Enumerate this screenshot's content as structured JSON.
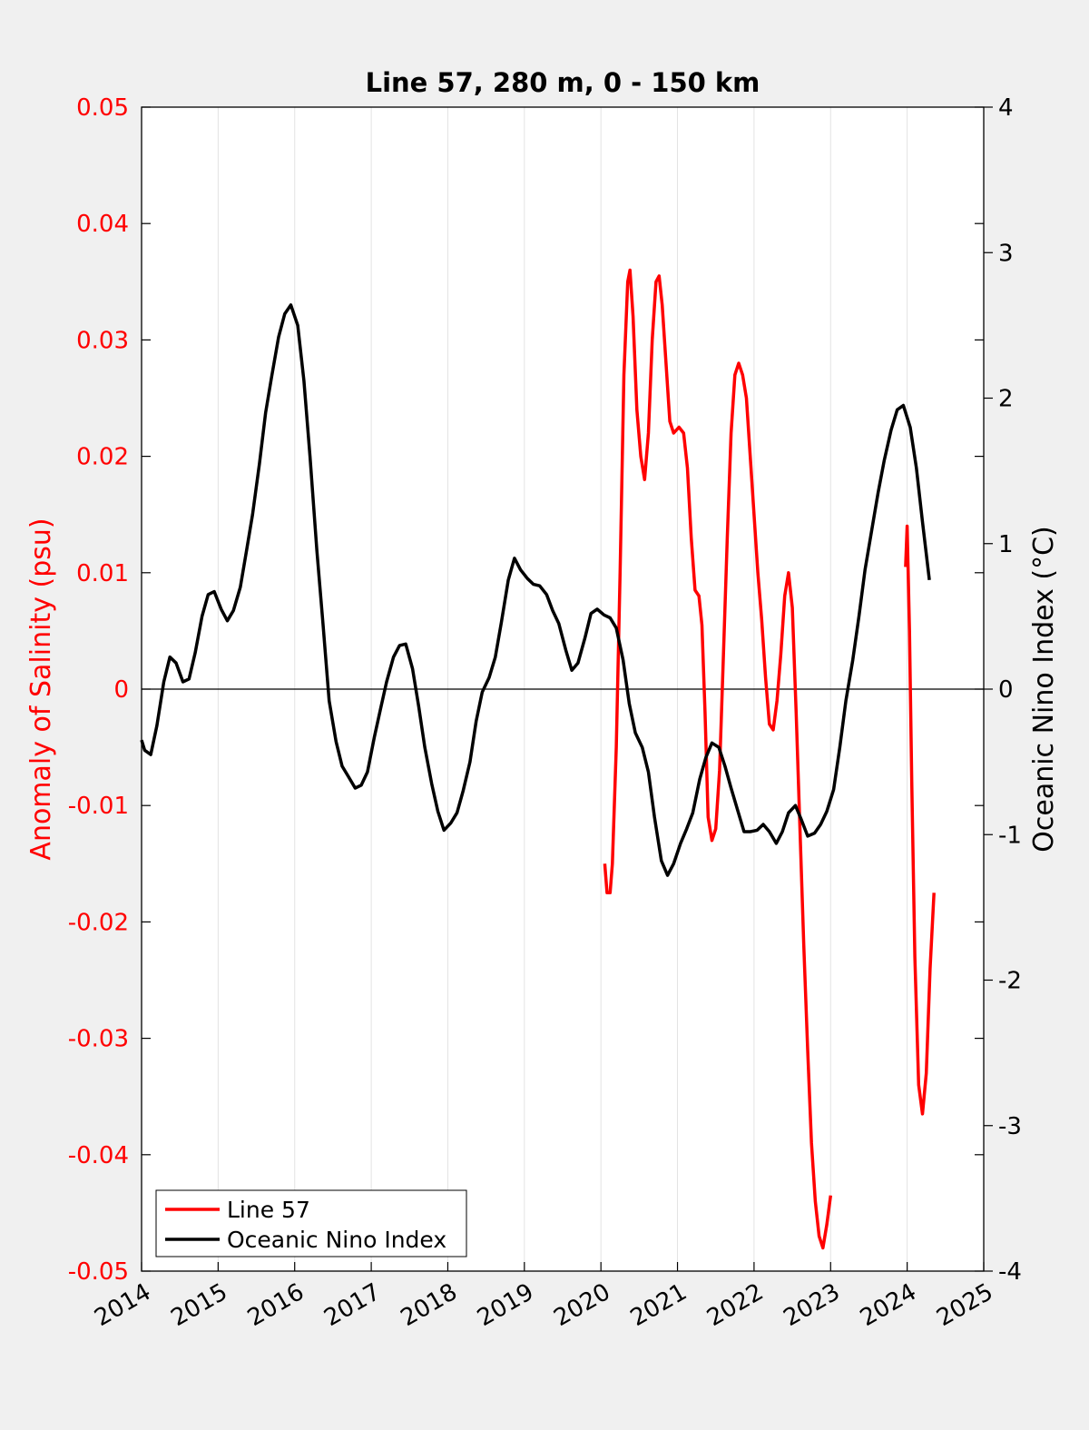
{
  "chart_data": {
    "type": "line",
    "title": "Line 57, 280 m, 0 - 150 km",
    "ylabel_left": "Anomaly of Salinity (psu)",
    "ylabel_right": "Oceanic Nino Index (°C)",
    "xlim": [
      2014,
      2025
    ],
    "ylim_left": [
      -0.05,
      0.05
    ],
    "ylim_right": [
      -4,
      4
    ],
    "grid": "vertical",
    "legend_position": "bottom-left",
    "x_ticks": [
      "2014",
      "2015",
      "2016",
      "2017",
      "2018",
      "2019",
      "2020",
      "2021",
      "2022",
      "2023",
      "2024",
      "2025"
    ],
    "y_left_ticks": [
      "-0.05",
      "-0.04",
      "-0.03",
      "-0.02",
      "-0.01",
      "0",
      "0.01",
      "0.02",
      "0.03",
      "0.04",
      "0.05"
    ],
    "y_right_ticks": [
      "-4",
      "-3",
      "-2",
      "-1",
      "0",
      "1",
      "2",
      "3",
      "4"
    ],
    "colors": {
      "salinity": "#ff0000",
      "oni": "#000000",
      "left_axis": "#ff0000",
      "right_axis": "#000000"
    },
    "series": [
      {
        "name": "Line 57",
        "axis": "left",
        "segments": [
          [
            [
              2020.05,
              -0.015
            ],
            [
              2020.08,
              -0.0175
            ],
            [
              2020.12,
              -0.0175
            ],
            [
              2020.15,
              -0.015
            ],
            [
              2020.2,
              -0.005
            ],
            [
              2020.25,
              0.01
            ],
            [
              2020.3,
              0.027
            ],
            [
              2020.35,
              0.035
            ],
            [
              2020.38,
              0.036
            ],
            [
              2020.42,
              0.032
            ],
            [
              2020.47,
              0.024
            ],
            [
              2020.52,
              0.02
            ],
            [
              2020.57,
              0.018
            ],
            [
              2020.62,
              0.022
            ],
            [
              2020.67,
              0.03
            ],
            [
              2020.72,
              0.035
            ],
            [
              2020.76,
              0.0355
            ],
            [
              2020.8,
              0.033
            ],
            [
              2020.85,
              0.028
            ],
            [
              2020.9,
              0.023
            ],
            [
              2020.95,
              0.022
            ],
            [
              2021.02,
              0.0225
            ],
            [
              2021.08,
              0.022
            ],
            [
              2021.13,
              0.019
            ],
            [
              2021.18,
              0.013
            ],
            [
              2021.23,
              0.0085
            ],
            [
              2021.28,
              0.008
            ],
            [
              2021.32,
              0.0055
            ],
            [
              2021.36,
              -0.002
            ],
            [
              2021.4,
              -0.011
            ],
            [
              2021.45,
              -0.013
            ],
            [
              2021.5,
              -0.012
            ],
            [
              2021.55,
              -0.007
            ],
            [
              2021.6,
              0.003
            ],
            [
              2021.65,
              0.013
            ],
            [
              2021.7,
              0.022
            ],
            [
              2021.75,
              0.027
            ],
            [
              2021.8,
              0.028
            ],
            [
              2021.85,
              0.027
            ],
            [
              2021.9,
              0.025
            ],
            [
              2021.95,
              0.02
            ],
            [
              2022.0,
              0.015
            ],
            [
              2022.05,
              0.01
            ],
            [
              2022.1,
              0.006
            ],
            [
              2022.15,
              0.001
            ],
            [
              2022.2,
              -0.003
            ],
            [
              2022.25,
              -0.0035
            ],
            [
              2022.3,
              -0.001
            ],
            [
              2022.35,
              0.003
            ],
            [
              2022.4,
              0.008
            ],
            [
              2022.45,
              0.01
            ],
            [
              2022.5,
              0.007
            ],
            [
              2022.55,
              -0.002
            ],
            [
              2022.6,
              -0.012
            ],
            [
              2022.65,
              -0.022
            ],
            [
              2022.7,
              -0.031
            ],
            [
              2022.75,
              -0.039
            ],
            [
              2022.8,
              -0.044
            ],
            [
              2022.85,
              -0.047
            ],
            [
              2022.9,
              -0.048
            ],
            [
              2022.95,
              -0.046
            ],
            [
              2023.0,
              -0.0435
            ]
          ],
          [
            [
              2023.98,
              0.0105
            ],
            [
              2024.0,
              0.014
            ],
            [
              2024.03,
              0.005
            ],
            [
              2024.06,
              -0.008
            ],
            [
              2024.1,
              -0.023
            ],
            [
              2024.15,
              -0.034
            ],
            [
              2024.2,
              -0.0365
            ],
            [
              2024.25,
              -0.033
            ],
            [
              2024.3,
              -0.024
            ],
            [
              2024.35,
              -0.0175
            ]
          ]
        ]
      },
      {
        "name": "Oceanic Nino Index",
        "axis": "right",
        "points": [
          [
            2014.0,
            -0.35
          ],
          [
            2014.04,
            -0.42
          ],
          [
            2014.12,
            -0.45
          ],
          [
            2014.2,
            -0.25
          ],
          [
            2014.29,
            0.05
          ],
          [
            2014.37,
            0.22
          ],
          [
            2014.45,
            0.18
          ],
          [
            2014.54,
            0.05
          ],
          [
            2014.62,
            0.07
          ],
          [
            2014.7,
            0.25
          ],
          [
            2014.79,
            0.5
          ],
          [
            2014.87,
            0.65
          ],
          [
            2014.95,
            0.67
          ],
          [
            2015.04,
            0.55
          ],
          [
            2015.12,
            0.47
          ],
          [
            2015.2,
            0.54
          ],
          [
            2015.29,
            0.7
          ],
          [
            2015.37,
            0.95
          ],
          [
            2015.45,
            1.2
          ],
          [
            2015.54,
            1.55
          ],
          [
            2015.62,
            1.9
          ],
          [
            2015.7,
            2.15
          ],
          [
            2015.79,
            2.42
          ],
          [
            2015.87,
            2.58
          ],
          [
            2015.95,
            2.64
          ],
          [
            2016.04,
            2.5
          ],
          [
            2016.12,
            2.12
          ],
          [
            2016.2,
            1.6
          ],
          [
            2016.29,
            0.95
          ],
          [
            2016.37,
            0.45
          ],
          [
            2016.45,
            -0.08
          ],
          [
            2016.54,
            -0.36
          ],
          [
            2016.62,
            -0.53
          ],
          [
            2016.7,
            -0.6
          ],
          [
            2016.79,
            -0.68
          ],
          [
            2016.87,
            -0.66
          ],
          [
            2016.95,
            -0.57
          ],
          [
            2017.04,
            -0.33
          ],
          [
            2017.12,
            -0.14
          ],
          [
            2017.2,
            0.05
          ],
          [
            2017.29,
            0.22
          ],
          [
            2017.37,
            0.3
          ],
          [
            2017.45,
            0.31
          ],
          [
            2017.54,
            0.14
          ],
          [
            2017.62,
            -0.12
          ],
          [
            2017.7,
            -0.4
          ],
          [
            2017.79,
            -0.65
          ],
          [
            2017.87,
            -0.84
          ],
          [
            2017.95,
            -0.97
          ],
          [
            2018.04,
            -0.92
          ],
          [
            2018.12,
            -0.85
          ],
          [
            2018.2,
            -0.7
          ],
          [
            2018.29,
            -0.5
          ],
          [
            2018.37,
            -0.22
          ],
          [
            2018.45,
            -0.02
          ],
          [
            2018.54,
            0.08
          ],
          [
            2018.62,
            0.22
          ],
          [
            2018.7,
            0.46
          ],
          [
            2018.79,
            0.75
          ],
          [
            2018.87,
            0.9
          ],
          [
            2018.95,
            0.82
          ],
          [
            2019.04,
            0.76
          ],
          [
            2019.12,
            0.72
          ],
          [
            2019.2,
            0.71
          ],
          [
            2019.29,
            0.65
          ],
          [
            2019.37,
            0.54
          ],
          [
            2019.45,
            0.45
          ],
          [
            2019.54,
            0.27
          ],
          [
            2019.62,
            0.13
          ],
          [
            2019.7,
            0.18
          ],
          [
            2019.79,
            0.35
          ],
          [
            2019.87,
            0.52
          ],
          [
            2019.95,
            0.55
          ],
          [
            2020.04,
            0.51
          ],
          [
            2020.12,
            0.49
          ],
          [
            2020.2,
            0.42
          ],
          [
            2020.29,
            0.2
          ],
          [
            2020.37,
            -0.1
          ],
          [
            2020.45,
            -0.3
          ],
          [
            2020.54,
            -0.4
          ],
          [
            2020.62,
            -0.57
          ],
          [
            2020.7,
            -0.88
          ],
          [
            2020.79,
            -1.18
          ],
          [
            2020.87,
            -1.28
          ],
          [
            2020.95,
            -1.2
          ],
          [
            2021.04,
            -1.06
          ],
          [
            2021.12,
            -0.96
          ],
          [
            2021.2,
            -0.85
          ],
          [
            2021.29,
            -0.62
          ],
          [
            2021.37,
            -0.47
          ],
          [
            2021.45,
            -0.37
          ],
          [
            2021.54,
            -0.4
          ],
          [
            2021.62,
            -0.53
          ],
          [
            2021.7,
            -0.68
          ],
          [
            2021.79,
            -0.84
          ],
          [
            2021.87,
            -0.98
          ],
          [
            2021.95,
            -0.98
          ],
          [
            2022.04,
            -0.97
          ],
          [
            2022.12,
            -0.93
          ],
          [
            2022.2,
            -0.98
          ],
          [
            2022.29,
            -1.06
          ],
          [
            2022.37,
            -0.98
          ],
          [
            2022.45,
            -0.85
          ],
          [
            2022.54,
            -0.8
          ],
          [
            2022.62,
            -0.9
          ],
          [
            2022.7,
            -1.01
          ],
          [
            2022.79,
            -0.99
          ],
          [
            2022.87,
            -0.93
          ],
          [
            2022.95,
            -0.84
          ],
          [
            2023.04,
            -0.69
          ],
          [
            2023.12,
            -0.4
          ],
          [
            2023.2,
            -0.08
          ],
          [
            2023.29,
            0.2
          ],
          [
            2023.37,
            0.5
          ],
          [
            2023.45,
            0.82
          ],
          [
            2023.54,
            1.1
          ],
          [
            2023.62,
            1.35
          ],
          [
            2023.7,
            1.57
          ],
          [
            2023.79,
            1.78
          ],
          [
            2023.87,
            1.92
          ],
          [
            2023.95,
            1.95
          ],
          [
            2024.04,
            1.8
          ],
          [
            2024.12,
            1.52
          ],
          [
            2024.2,
            1.15
          ],
          [
            2024.29,
            0.75
          ]
        ]
      }
    ]
  }
}
